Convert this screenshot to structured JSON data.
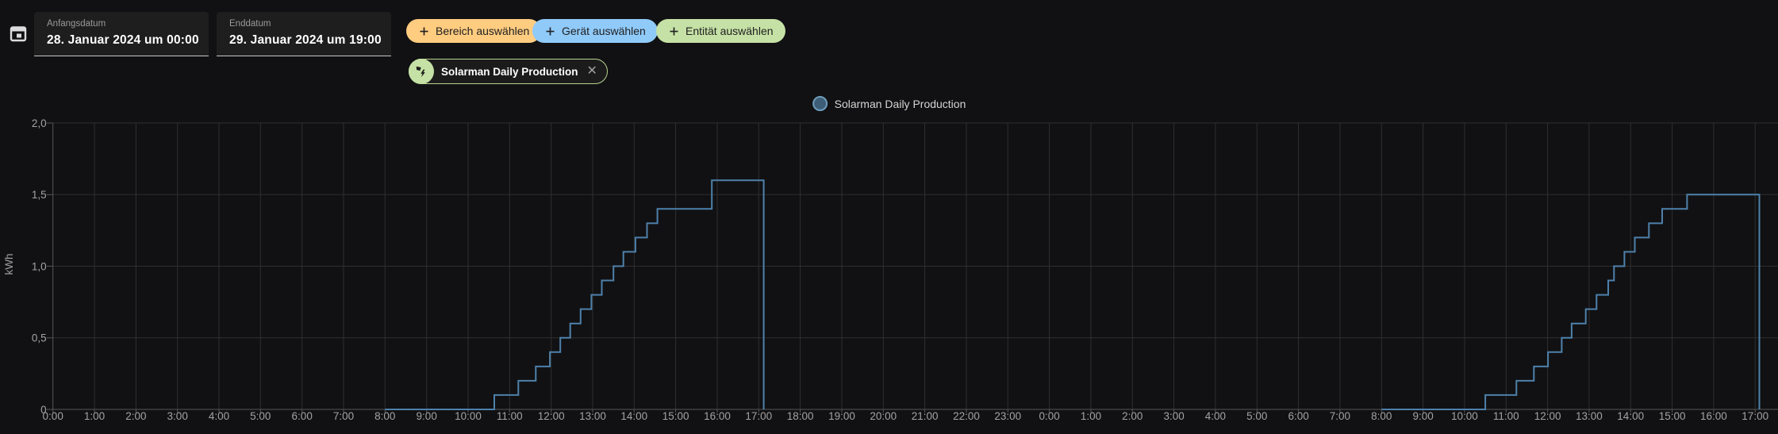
{
  "app": {
    "background": "#111113",
    "accent_line": "#4e81ab"
  },
  "header": {
    "date_range": {
      "start": {
        "label": "Anfangsdatum",
        "value": "28. Januar 2024 um 00:00"
      },
      "end": {
        "label": "Enddatum",
        "value": "29. Januar 2024 um 19:00"
      }
    },
    "filter_chips": [
      {
        "label": "Bereich auswählen",
        "color": "#ffcc80"
      },
      {
        "label": "Gerät auswählen",
        "color": "#90caf9"
      },
      {
        "label": "Entität auswählen",
        "color": "#c5e1a5"
      }
    ],
    "selected_entity_chip": {
      "label": "Solarman Daily Production",
      "color": "#c5e1a5"
    }
  },
  "icons": {
    "close": "✕",
    "calendar": "calendar-icon",
    "plus": "+",
    "entity_avatar": "solar-power-icon"
  },
  "chart_data": {
    "type": "line",
    "step": "after",
    "line_color": "#4e81ab",
    "grid": true,
    "legend": {
      "position": "top-center",
      "entries": [
        {
          "label": "Solarman Daily Production",
          "marker_fill": "#3e5e77",
          "marker_border": "#6f9dbb"
        }
      ]
    },
    "x_axis": {
      "kind": "time",
      "labels": [
        "0:00",
        "1:00",
        "2:00",
        "3:00",
        "4:00",
        "5:00",
        "6:00",
        "7:00",
        "8:00",
        "9:00",
        "10:00",
        "11:00",
        "12:00",
        "13:00",
        "14:00",
        "15:00",
        "16:00",
        "17:00",
        "18:00",
        "19:00",
        "20:00",
        "21:00",
        "22:00",
        "23:00",
        "0:00",
        "1:00",
        "2:00",
        "3:00",
        "4:00",
        "5:00",
        "6:00",
        "7:00",
        "8:00",
        "9:00",
        "10:00",
        "11:00",
        "12:00",
        "13:00",
        "14:00",
        "15:00",
        "16:00",
        "17:00"
      ]
    },
    "y_axis": {
      "unit": "kWh",
      "min": 0,
      "max": 2,
      "ticks": [
        {
          "value": 0,
          "label": "0"
        },
        {
          "value": 0.5,
          "label": "0,5"
        },
        {
          "value": 1,
          "label": "1,0"
        },
        {
          "value": 1.5,
          "label": "1,5"
        },
        {
          "value": 2,
          "label": "2,0"
        }
      ]
    },
    "series": [
      {
        "name": "Solarman Daily Production",
        "unit": "kWh",
        "segments": [
          {
            "date": "28. Januar 2024",
            "points_hour_value": [
              [
                8,
                0
              ],
              [
                10.63,
                0.1
              ],
              [
                11.21,
                0.2
              ],
              [
                11.63,
                0.3
              ],
              [
                11.97,
                0.4
              ],
              [
                12.22,
                0.5
              ],
              [
                12.46,
                0.6
              ],
              [
                12.71,
                0.7
              ],
              [
                12.97,
                0.8
              ],
              [
                13.22,
                0.9
              ],
              [
                13.5,
                1.0
              ],
              [
                13.74,
                1.1
              ],
              [
                14.03,
                1.2
              ],
              [
                14.31,
                1.3
              ],
              [
                14.56,
                1.4
              ],
              [
                15.87,
                1.6
              ],
              [
                17.12,
                0
              ]
            ]
          },
          {
            "date": "29. Januar 2024",
            "points_hour_value": [
              [
                32,
                0
              ],
              [
                34.5,
                0.1
              ],
              [
                35.25,
                0.2
              ],
              [
                35.67,
                0.3
              ],
              [
                36.01,
                0.4
              ],
              [
                36.34,
                0.5
              ],
              [
                36.58,
                0.6
              ],
              [
                36.92,
                0.7
              ],
              [
                37.18,
                0.8
              ],
              [
                37.46,
                0.9
              ],
              [
                37.6,
                1.0
              ],
              [
                37.85,
                1.1
              ],
              [
                38.1,
                1.2
              ],
              [
                38.44,
                1.3
              ],
              [
                38.76,
                1.4
              ],
              [
                39.36,
                1.5
              ],
              [
                41.1,
                0
              ]
            ]
          }
        ]
      }
    ]
  }
}
